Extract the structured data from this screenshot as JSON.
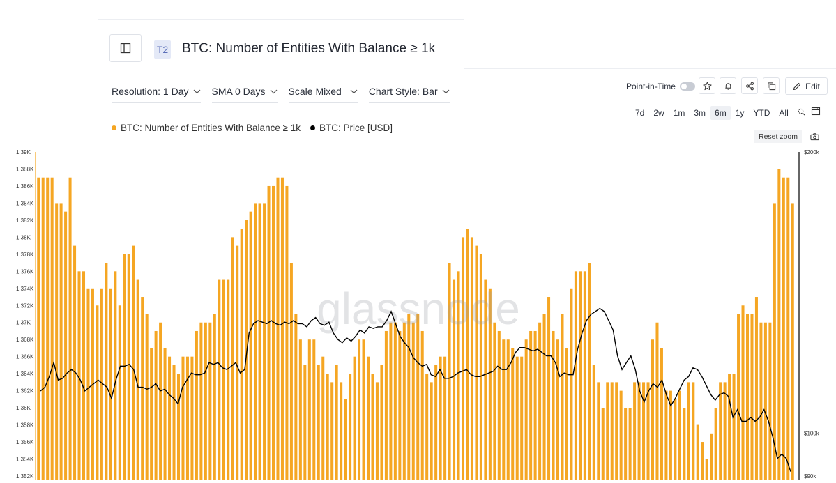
{
  "header": {
    "tier": "T2",
    "title": "BTC: Number of Entities With Balance ≥ 1k"
  },
  "controls": {
    "resolution": "Resolution: 1 Day",
    "sma": "SMA 0 Days",
    "scale": "Scale Mixed",
    "chart_style": "Chart Style: Bar"
  },
  "toolbar": {
    "point_in_time": "Point-in-Time",
    "edit": "Edit",
    "reset_zoom": "Reset zoom",
    "ranges": [
      "7d",
      "2w",
      "1m",
      "3m",
      "6m",
      "1y",
      "YTD",
      "All"
    ],
    "active_range": "6m"
  },
  "colors": {
    "bars": "#f5a623",
    "price": "#000000"
  },
  "chart_data": {
    "type": "bar",
    "watermark": "glassnode",
    "series": [
      {
        "name": "BTC: Number of Entities With Balance ≥ 1k",
        "axis": "left",
        "style": "bar",
        "values": [
          1387,
          1387,
          1387,
          1387,
          1384,
          1384,
          1383,
          1387,
          1379,
          1376,
          1376,
          1374,
          1374,
          1372,
          1374,
          1377,
          1374,
          1376,
          1372,
          1378,
          1378,
          1379,
          1375,
          1373,
          1371,
          1367,
          1369,
          1370,
          1367,
          1366,
          1365,
          1364,
          1366,
          1366,
          1366,
          1369,
          1370,
          1370,
          1370,
          1371,
          1375,
          1375,
          1375,
          1380,
          1379,
          1381,
          1382,
          1383,
          1384,
          1384,
          1384,
          1386,
          1386,
          1387,
          1387,
          1386,
          1377,
          1371,
          1368,
          1365,
          1368,
          1368,
          1365,
          1366,
          1364,
          1363,
          1365,
          1363,
          1361,
          1364,
          1366,
          1368,
          1368,
          1366,
          1364,
          1363,
          1365,
          1369,
          1370,
          1370,
          1369,
          1370,
          1371,
          1370,
          1371,
          1369,
          1364,
          1363,
          1365,
          1366,
          1366,
          1377,
          1375,
          1376,
          1380,
          1381,
          1380,
          1379,
          1378,
          1375,
          1374,
          1370,
          1369,
          1368,
          1368,
          1367,
          1366,
          1366,
          1368,
          1369,
          1369,
          1370,
          1371,
          1373,
          1369,
          1368,
          1371,
          1367,
          1374,
          1376,
          1376,
          1376,
          1377,
          1365,
          1363,
          1360,
          1363,
          1363,
          1363,
          1362,
          1360,
          1360,
          1363,
          1363,
          1363,
          1363,
          1368,
          1370,
          1367,
          1362,
          1362,
          1361,
          1362,
          1360,
          1363,
          1363,
          1358,
          1356,
          1354,
          1357,
          1360,
          1363,
          1363,
          1364,
          1364,
          1371,
          1372,
          1371,
          1371,
          1373,
          1370,
          1370,
          1370,
          1384,
          1388,
          1387,
          1387,
          1384
        ]
      },
      {
        "name": "BTC: Price [USD]",
        "axis": "right",
        "style": "line",
        "values": [
          111000,
          112000,
          115000,
          119000,
          114000,
          114500,
          116000,
          117000,
          116000,
          114000,
          111000,
          112000,
          113000,
          114000,
          113000,
          112000,
          109000,
          114000,
          118000,
          118000,
          118500,
          117000,
          112000,
          112000,
          111500,
          112000,
          113000,
          111000,
          111500,
          110000,
          109000,
          107500,
          112000,
          114000,
          116000,
          115500,
          115500,
          116000,
          119000,
          118500,
          119000,
          117500,
          117000,
          118000,
          119000,
          116000,
          117000,
          128000,
          131000,
          132000,
          131500,
          131000,
          132000,
          131000,
          130500,
          131500,
          131000,
          132000,
          131000,
          131000,
          130000,
          132000,
          133000,
          131000,
          130500,
          131500,
          128000,
          126000,
          125000,
          126500,
          125500,
          127000,
          129000,
          128000,
          130000,
          129500,
          130000,
          130000,
          132000,
          135000,
          131000,
          127000,
          125000,
          123500,
          120500,
          119000,
          118000,
          118500,
          115500,
          115000,
          117000,
          114500,
          114500,
          115000,
          116000,
          116500,
          117000,
          115500,
          115000,
          115000,
          115500,
          116000,
          116500,
          118000,
          117000,
          117000,
          119000,
          122000,
          123500,
          123500,
          123000,
          122500,
          123000,
          122000,
          121000,
          121000,
          119000,
          115000,
          116000,
          115500,
          115500,
          123000,
          128000,
          132000,
          134000,
          135000,
          136000,
          135000,
          132000,
          129000,
          121000,
          117000,
          119000,
          121000,
          117000,
          111000,
          108000,
          111000,
          113000,
          112000,
          114000,
          110000,
          107000,
          109000,
          111500,
          114000,
          115000,
          117500,
          117000,
          115000,
          112500,
          110000,
          108500,
          110000,
          110500,
          109500,
          104000,
          106000,
          103000,
          103000,
          104000,
          103000,
          104000,
          106000,
          103000,
          99000,
          94000,
          95000,
          94000,
          91000
        ]
      }
    ],
    "y_left": {
      "min": 1352,
      "max": 1390,
      "ticks": [
        "1.352K",
        "1.354K",
        "1.356K",
        "1.358K",
        "1.36K",
        "1.362K",
        "1.364K",
        "1.366K",
        "1.368K",
        "1.37K",
        "1.372K",
        "1.374K",
        "1.376K",
        "1.378K",
        "1.38K",
        "1.382K",
        "1.384K",
        "1.386K",
        "1.388K",
        "1.39K"
      ]
    },
    "y_right": {
      "scale": "log",
      "min": 90000,
      "max": 200000,
      "ticks": [
        {
          "label": "$200k",
          "value": 200000
        },
        {
          "label": "$100k",
          "value": 100000
        },
        {
          "label": "$90k",
          "value": 90000
        }
      ]
    },
    "grid": false
  }
}
